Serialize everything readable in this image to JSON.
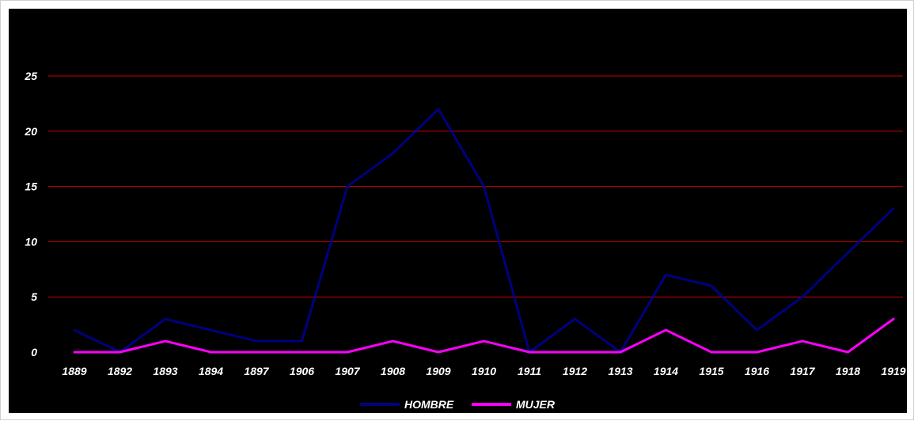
{
  "chart_data": {
    "type": "line",
    "title": "",
    "xlabel": "",
    "ylabel": "",
    "categories": [
      "1889",
      "1892",
      "1893",
      "1894",
      "1897",
      "1906",
      "1907",
      "1908",
      "1909",
      "1910",
      "1911",
      "1912",
      "1913",
      "1914",
      "1915",
      "1916",
      "1917",
      "1918",
      "1919"
    ],
    "ylim": [
      0,
      25
    ],
    "yticks": [
      0,
      5,
      10,
      15,
      20,
      25
    ],
    "grid": true,
    "legend": "bottom-center",
    "background_color": "#000000",
    "grid_color": "#cc0000",
    "series": [
      {
        "name": "HOMBRE",
        "color": "#000080",
        "values": [
          2,
          0,
          3,
          2,
          1,
          1,
          15,
          18,
          22,
          15,
          0,
          3,
          0,
          7,
          6,
          2,
          5,
          9,
          13
        ]
      },
      {
        "name": "MUJER",
        "color": "#ff00ff",
        "values": [
          0,
          0,
          1,
          0,
          0,
          0,
          0,
          1,
          0,
          1,
          0,
          0,
          0,
          2,
          0,
          0,
          1,
          0,
          3
        ]
      }
    ]
  }
}
